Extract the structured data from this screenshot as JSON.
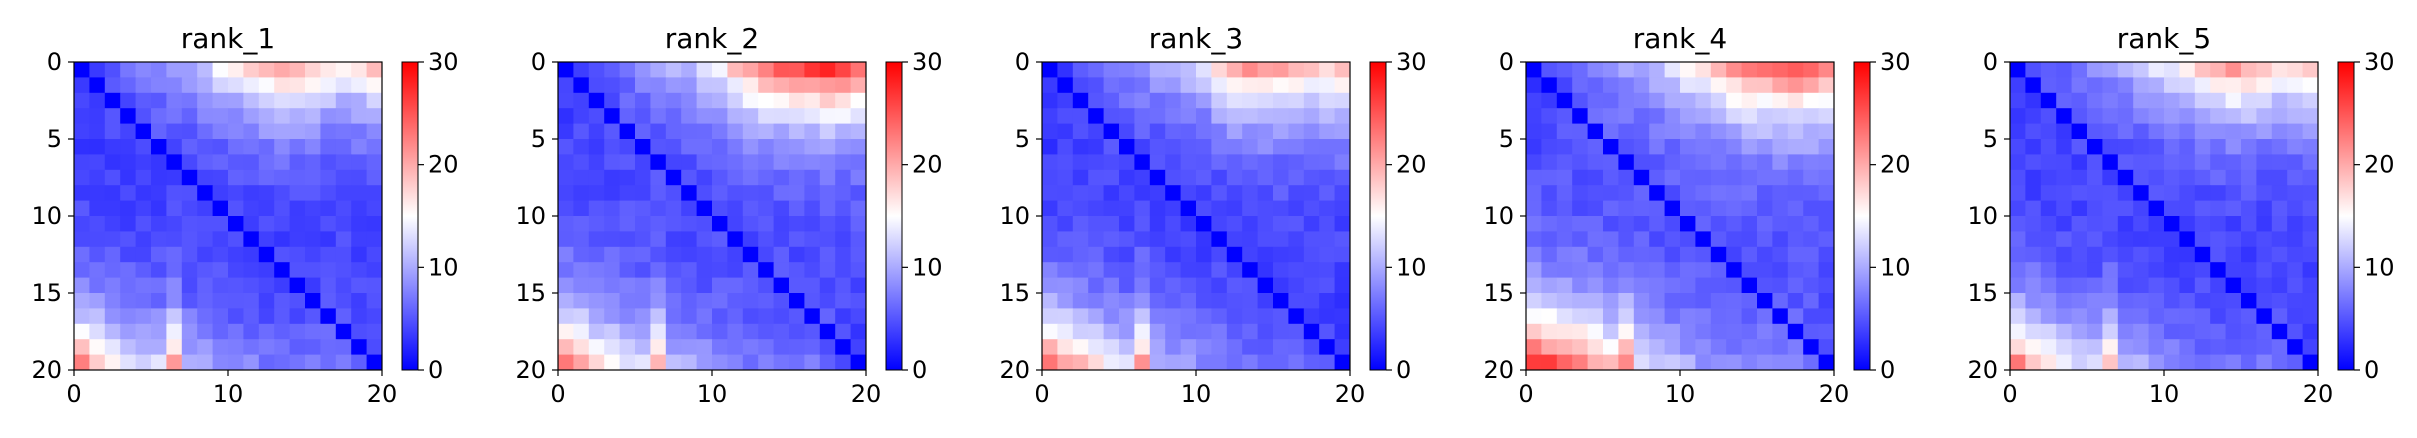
{
  "figure": {
    "panel_count": 5
  },
  "colorbar": {
    "colormap": "bwr",
    "colors": {
      "low": "#0000ff",
      "mid": "#ffffff",
      "high": "#ff0000"
    },
    "vmin": 0,
    "vmax": 30,
    "ticks": [
      "0",
      "10",
      "20",
      "30"
    ]
  },
  "chart_data": [
    {
      "type": "heatmap",
      "title": "rank_1",
      "size": 20,
      "xlim": [
        0,
        20
      ],
      "ylim": [
        20,
        0
      ],
      "xticks": [
        "0",
        "10",
        "20"
      ],
      "yticks": [
        "0",
        "5",
        "10",
        "15",
        "20"
      ],
      "corner_profile": {
        "top": [
          3,
          4,
          5,
          6,
          7,
          8,
          9,
          10,
          12,
          14,
          15,
          17,
          19,
          20,
          20,
          18,
          16,
          15,
          16,
          18
        ],
        "bottom": [
          22,
          19,
          16,
          14,
          13,
          13,
          20,
          11,
          10,
          9,
          8,
          8,
          7,
          7,
          7,
          7,
          7,
          7,
          6,
          5
        ],
        "interior": 3.5
      }
    },
    {
      "type": "heatmap",
      "title": "rank_2",
      "size": 20,
      "xlim": [
        0,
        20
      ],
      "ylim": [
        20,
        0
      ],
      "xticks": [
        "0",
        "10",
        "20"
      ],
      "yticks": [
        "0",
        "5",
        "10",
        "15",
        "20"
      ],
      "corner_profile": {
        "top": [
          3,
          4,
          5,
          6,
          7,
          8,
          9,
          10,
          11,
          13,
          15,
          18,
          21,
          23,
          24,
          25,
          26,
          27,
          26,
          24
        ],
        "bottom": [
          24,
          21,
          18,
          16,
          14,
          13,
          19,
          11,
          10,
          9,
          8,
          8,
          7,
          7,
          7,
          7,
          7,
          6,
          5,
          4
        ],
        "interior": 4
      }
    },
    {
      "type": "heatmap",
      "title": "rank_3",
      "size": 20,
      "xlim": [
        0,
        20
      ],
      "ylim": [
        20,
        0
      ],
      "xticks": [
        "0",
        "10",
        "20"
      ],
      "yticks": [
        "0",
        "5",
        "10",
        "15",
        "20"
      ],
      "corner_profile": {
        "top": [
          3,
          4,
          5,
          6,
          7,
          8,
          9,
          10,
          11,
          12,
          13,
          17,
          20,
          21,
          21,
          20,
          19,
          18,
          18,
          19
        ],
        "bottom": [
          23,
          21,
          19,
          17,
          15,
          14,
          21,
          11,
          10,
          9,
          8,
          8,
          7,
          7,
          6,
          6,
          6,
          6,
          5,
          4
        ],
        "interior": 3.5
      }
    },
    {
      "type": "heatmap",
      "title": "rank_4",
      "size": 20,
      "xlim": [
        0,
        20
      ],
      "ylim": [
        20,
        0
      ],
      "xticks": [
        "0",
        "10",
        "20"
      ],
      "yticks": [
        "0",
        "5",
        "10",
        "15",
        "20"
      ],
      "corner_profile": {
        "top": [
          3,
          4,
          5,
          6,
          7,
          8,
          9,
          10,
          11,
          13,
          15,
          17,
          19,
          21,
          22,
          23,
          24,
          25,
          24,
          22
        ],
        "bottom": [
          27,
          26,
          25,
          23,
          20,
          18,
          22,
          14,
          12,
          11,
          10,
          9,
          9,
          8,
          8,
          8,
          7,
          7,
          6,
          5
        ],
        "interior": 4.5
      }
    },
    {
      "type": "heatmap",
      "title": "rank_5",
      "size": 20,
      "xlim": [
        0,
        20
      ],
      "ylim": [
        20,
        0
      ],
      "xticks": [
        "0",
        "10",
        "20"
      ],
      "yticks": [
        "0",
        "5",
        "10",
        "15",
        "20"
      ],
      "corner_profile": {
        "top": [
          3,
          4,
          5,
          6,
          7,
          8,
          9,
          10,
          11,
          13,
          14,
          16,
          18,
          20,
          21,
          20,
          18,
          17,
          18,
          19
        ],
        "bottom": [
          22,
          19,
          17,
          15,
          13,
          13,
          19,
          11,
          10,
          9,
          8,
          8,
          7,
          7,
          7,
          7,
          7,
          6,
          5,
          4
        ],
        "interior": 3.5
      }
    }
  ]
}
